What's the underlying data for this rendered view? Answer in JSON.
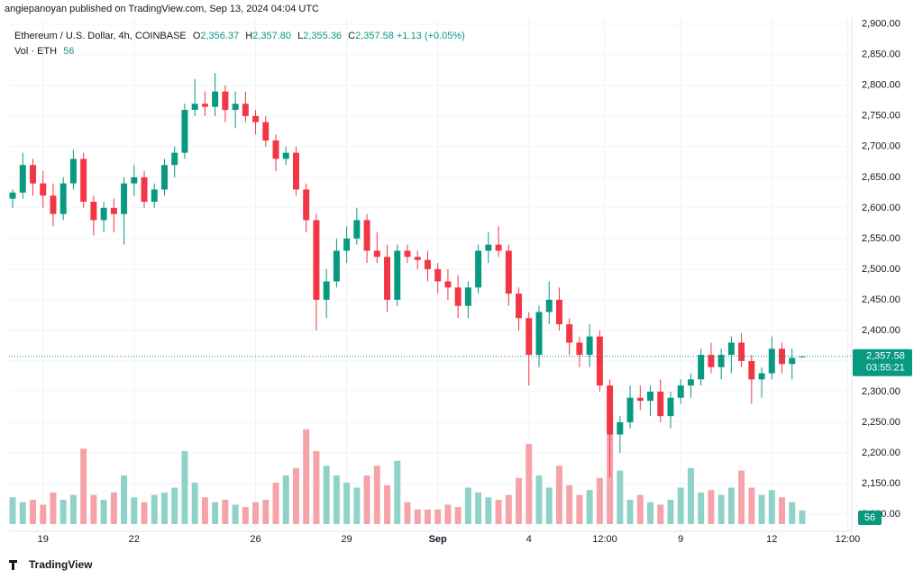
{
  "header": "angiepanoyan published on TradingView.com, Sep 13, 2024 04:04 UTC",
  "footer": "TradingView",
  "chart_data": {
    "type": "candlestick",
    "legend": {
      "symbol": "Ethereum / U.S. Dollar, 4h, COINBASE",
      "open_label": "O",
      "open": "2,356.37",
      "high_label": "H",
      "high": "2,357.80",
      "low_label": "L",
      "low": "2,355.36",
      "close_label": "C",
      "close": "2,357.58",
      "change": "+1.13 (+0.05%)",
      "volume_title": "Vol · ETH",
      "volume": "56"
    },
    "up_color": "#089981",
    "down_color": "#f23645",
    "up_volume_color": "#8fd3c8",
    "down_volume_color": "#f5a3a8",
    "ylim": [
      2072,
      2910
    ],
    "yticks": [
      {
        "value": 2100,
        "label": "2,100.00"
      },
      {
        "value": 2150,
        "label": "2,150.00"
      },
      {
        "value": 2200,
        "label": "2,200.00"
      },
      {
        "value": 2250,
        "label": "2,250.00"
      },
      {
        "value": 2300,
        "label": "2,300.00"
      },
      {
        "value": 2350,
        "label": "2,350.00"
      },
      {
        "value": 2400,
        "label": "2,400.00"
      },
      {
        "value": 2450,
        "label": "2,450.00"
      },
      {
        "value": 2500,
        "label": "2,500.00"
      },
      {
        "value": 2550,
        "label": "2,550.00"
      },
      {
        "value": 2600,
        "label": "2,600.00"
      },
      {
        "value": 2650,
        "label": "2,650.00"
      },
      {
        "value": 2700,
        "label": "2,700.00"
      },
      {
        "value": 2750,
        "label": "2,750.00"
      },
      {
        "value": 2800,
        "label": "2,800.00"
      },
      {
        "value": 2850,
        "label": "2,850.00"
      },
      {
        "value": 2900,
        "label": "2,900.00"
      }
    ],
    "xlim": [
      -0.36,
      82.9
    ],
    "xticks": [
      {
        "value": 3,
        "label": "19"
      },
      {
        "value": 12,
        "label": "22"
      },
      {
        "value": 24,
        "label": "26"
      },
      {
        "value": 33,
        "label": "29"
      },
      {
        "value": 42,
        "label": "Sep"
      },
      {
        "value": 51,
        "label": "4"
      },
      {
        "value": 58.5,
        "label": "12:00"
      },
      {
        "value": 66,
        "label": "9"
      },
      {
        "value": 75,
        "label": "12"
      },
      {
        "value": 82.5,
        "label": "12:00"
      }
    ],
    "grid": true,
    "last_price": {
      "value": 2357.58,
      "label": "2,357.58"
    },
    "countdown": "03:55:21",
    "open": [
      2615,
      2625,
      2670,
      2640,
      2620,
      2590,
      2640,
      2680,
      2610,
      2580,
      2600,
      2590,
      2640,
      2650,
      2610,
      2630,
      2670,
      2690,
      2760,
      2770,
      2765,
      2790,
      2760,
      2770,
      2750,
      2740,
      2710,
      2680,
      2690,
      2630,
      2580,
      2450,
      2480,
      2530,
      2550,
      2580,
      2530,
      2520,
      2450,
      2530,
      2520,
      2515,
      2500,
      2480,
      2470,
      2440,
      2470,
      2530,
      2540,
      2530,
      2460,
      2420,
      2360,
      2430,
      2450,
      2410,
      2380,
      2360,
      2390,
      2310,
      2230,
      2250,
      2290,
      2285,
      2300,
      2260,
      2290,
      2310,
      2320,
      2360,
      2340,
      2360,
      2380,
      2350,
      2320,
      2330,
      2370,
      2345,
      2356.37
    ],
    "high": [
      2630,
      2690,
      2680,
      2660,
      2640,
      2650,
      2695,
      2690,
      2620,
      2610,
      2615,
      2650,
      2670,
      2660,
      2640,
      2680,
      2700,
      2770,
      2810,
      2790,
      2820,
      2800,
      2790,
      2790,
      2760,
      2750,
      2720,
      2700,
      2700,
      2640,
      2590,
      2500,
      2550,
      2570,
      2600,
      2590,
      2560,
      2540,
      2540,
      2540,
      2530,
      2530,
      2510,
      2500,
      2490,
      2480,
      2540,
      2560,
      2570,
      2540,
      2470,
      2430,
      2440,
      2480,
      2470,
      2420,
      2390,
      2410,
      2400,
      2320,
      2260,
      2310,
      2310,
      2310,
      2320,
      2300,
      2320,
      2330,
      2370,
      2380,
      2370,
      2390,
      2395,
      2360,
      2340,
      2390,
      2380,
      2370,
      2357.8
    ],
    "low": [
      2600,
      2615,
      2620,
      2600,
      2570,
      2580,
      2630,
      2600,
      2555,
      2560,
      2560,
      2540,
      2620,
      2600,
      2600,
      2620,
      2650,
      2680,
      2750,
      2750,
      2750,
      2740,
      2730,
      2740,
      2720,
      2700,
      2660,
      2670,
      2620,
      2560,
      2400,
      2420,
      2470,
      2510,
      2540,
      2510,
      2510,
      2430,
      2440,
      2510,
      2500,
      2480,
      2460,
      2450,
      2420,
      2420,
      2460,
      2510,
      2520,
      2440,
      2400,
      2310,
      2340,
      2410,
      2400,
      2360,
      2340,
      2340,
      2300,
      2160,
      2200,
      2240,
      2270,
      2260,
      2250,
      2240,
      2280,
      2290,
      2310,
      2330,
      2320,
      2330,
      2340,
      2280,
      2290,
      2320,
      2330,
      2320,
      2355.36
    ],
    "close": [
      2625,
      2670,
      2640,
      2620,
      2590,
      2640,
      2680,
      2610,
      2580,
      2600,
      2590,
      2640,
      2650,
      2610,
      2630,
      2670,
      2690,
      2760,
      2770,
      2765,
      2790,
      2760,
      2770,
      2750,
      2740,
      2710,
      2680,
      2690,
      2630,
      2580,
      2450,
      2480,
      2530,
      2550,
      2580,
      2530,
      2520,
      2450,
      2530,
      2520,
      2515,
      2500,
      2480,
      2470,
      2440,
      2470,
      2530,
      2540,
      2530,
      2460,
      2420,
      2360,
      2430,
      2450,
      2410,
      2380,
      2360,
      2390,
      2310,
      2230,
      2250,
      2290,
      2285,
      2300,
      2260,
      2290,
      2310,
      2320,
      2360,
      2340,
      2360,
      2380,
      2350,
      2320,
      2330,
      2370,
      2345,
      2355,
      2357.58
    ],
    "volume": [
      110,
      90,
      100,
      80,
      130,
      100,
      120,
      310,
      120,
      100,
      130,
      200,
      110,
      90,
      120,
      130,
      150,
      300,
      170,
      110,
      90,
      100,
      80,
      70,
      90,
      100,
      170,
      200,
      230,
      390,
      300,
      240,
      200,
      170,
      150,
      200,
      240,
      160,
      260,
      90,
      60,
      60,
      60,
      80,
      70,
      150,
      130,
      110,
      100,
      120,
      190,
      330,
      200,
      150,
      240,
      160,
      120,
      140,
      190,
      470,
      220,
      100,
      120,
      90,
      80,
      100,
      150,
      230,
      130,
      140,
      120,
      150,
      220,
      150,
      120,
      140,
      110,
      90,
      56
    ]
  }
}
